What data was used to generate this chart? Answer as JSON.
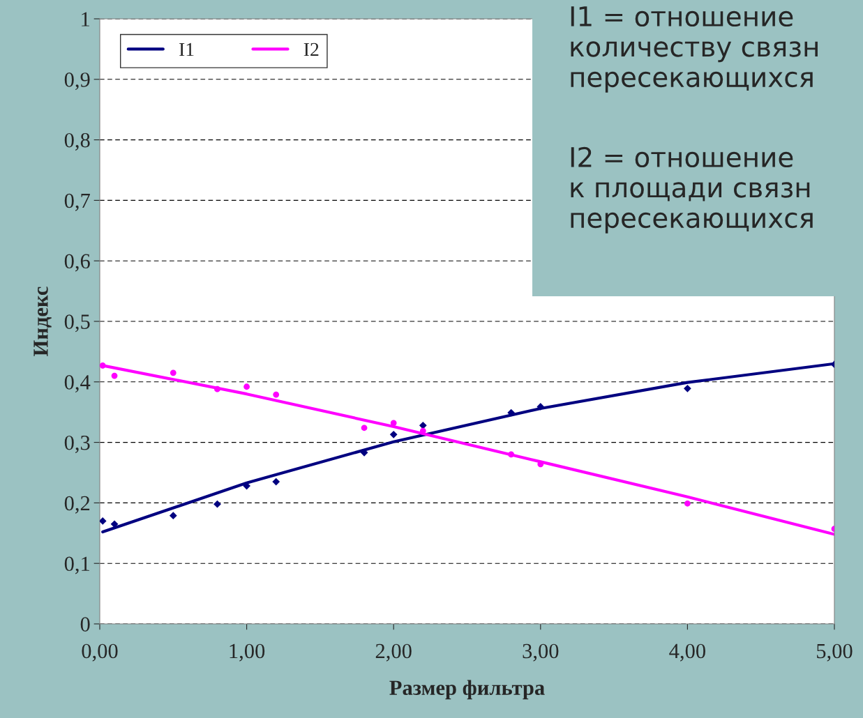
{
  "chart_data": {
    "type": "scatter",
    "xlabel": "Размер фильтра",
    "ylabel": "Индекс",
    "annotations": [
      "I1 = отношение\nколичеству связн\nпересекающихся",
      "I2 = отношение\nк площади связн\nпересекающихся"
    ],
    "xlim": [
      0,
      5
    ],
    "ylim": [
      0,
      1
    ],
    "xticks": [
      {
        "value": 0,
        "label": "0,00"
      },
      {
        "value": 1,
        "label": "1,00"
      },
      {
        "value": 2,
        "label": "2,00"
      },
      {
        "value": 3,
        "label": "3,00"
      },
      {
        "value": 4,
        "label": "4,00"
      },
      {
        "value": 5,
        "label": "5,00"
      }
    ],
    "yticks": [
      0,
      {
        "value": 0.1,
        "label": "0,1"
      },
      {
        "value": 0.2,
        "label": "0,2"
      },
      {
        "value": 0.3,
        "label": "0,3"
      },
      {
        "value": 0.4,
        "label": "0,4"
      },
      {
        "value": 0.5,
        "label": "0,5"
      },
      {
        "value": 0.6,
        "label": "0,6"
      },
      {
        "value": 0.7,
        "label": "0,7"
      },
      {
        "value": 0.8,
        "label": "0,8"
      },
      {
        "value": 0.9,
        "label": "0,9"
      },
      1
    ],
    "grid": "y",
    "legend": "top left",
    "series": [
      {
        "marker": "diamond",
        "color": "#000080",
        "x": [
          0.02,
          0.1,
          0.5,
          0.8,
          1.0,
          1.2,
          1.8,
          2.0,
          2.2,
          2.8,
          3.0,
          4.0,
          5.0
        ],
        "values": [
          0.17,
          0.165,
          0.179,
          0.198,
          0.228,
          0.235,
          0.283,
          0.313,
          0.328,
          0.349,
          0.359,
          0.389,
          0.429
        ]
      },
      {
        "marker": "circle",
        "color": "#ff00ff",
        "x": [
          0.02,
          0.1,
          0.5,
          0.8,
          1.0,
          1.2,
          1.8,
          2.0,
          2.2,
          2.8,
          3.0,
          4.0,
          5.0
        ],
        "values": [
          0.427,
          0.41,
          0.415,
          0.388,
          0.392,
          0.379,
          0.324,
          0.332,
          0.319,
          0.28,
          0.264,
          0.199,
          0.157
        ]
      },
      {
        "type": "line",
        "name": "I1",
        "color": "#000080",
        "x": [
          0.02,
          1.0,
          2.0,
          3.0,
          4.0,
          5.0
        ],
        "values": [
          0.152,
          0.233,
          0.301,
          0.356,
          0.399,
          0.43
        ]
      },
      {
        "type": "line",
        "name": "I2",
        "color": "#ff00ff",
        "x": [
          0.02,
          1.0,
          2.0,
          3.0,
          4.0,
          5.0
        ],
        "values": [
          0.427,
          0.38,
          0.326,
          0.268,
          0.21,
          0.148
        ]
      }
    ]
  }
}
